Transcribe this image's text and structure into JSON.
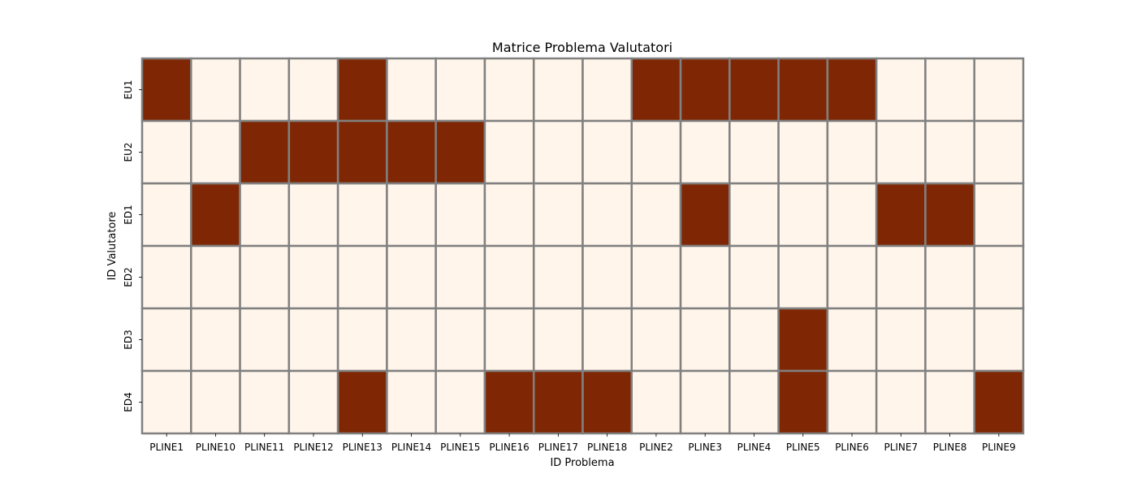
{
  "chart_data": {
    "type": "heatmap",
    "title": "Matrice Problema Valutatori",
    "xlabel": "ID Problema",
    "ylabel": "ID Valutatore",
    "x_categories": [
      "PLINE1",
      "PLINE10",
      "PLINE11",
      "PLINE12",
      "PLINE13",
      "PLINE14",
      "PLINE15",
      "PLINE16",
      "PLINE17",
      "PLINE18",
      "PLINE2",
      "PLINE3",
      "PLINE4",
      "PLINE5",
      "PLINE6",
      "PLINE7",
      "PLINE8",
      "PLINE9"
    ],
    "y_categories": [
      "EU1",
      "EU2",
      "ED1",
      "ED2",
      "ED3",
      "ED4"
    ],
    "values": [
      [
        1,
        0,
        0,
        0,
        1,
        0,
        0,
        0,
        0,
        0,
        1,
        1,
        1,
        1,
        1,
        0,
        0,
        0
      ],
      [
        0,
        0,
        1,
        1,
        1,
        1,
        1,
        0,
        0,
        0,
        0,
        0,
        0,
        0,
        0,
        0,
        0,
        0
      ],
      [
        0,
        1,
        0,
        0,
        0,
        0,
        0,
        0,
        0,
        0,
        0,
        1,
        0,
        0,
        0,
        1,
        1,
        0
      ],
      [
        0,
        0,
        0,
        0,
        0,
        0,
        0,
        0,
        0,
        0,
        0,
        0,
        0,
        0,
        0,
        0,
        0,
        0
      ],
      [
        0,
        0,
        0,
        0,
        0,
        0,
        0,
        0,
        0,
        0,
        0,
        0,
        0,
        1,
        0,
        0,
        0,
        0
      ],
      [
        0,
        0,
        0,
        0,
        1,
        0,
        0,
        1,
        1,
        1,
        0,
        0,
        0,
        1,
        0,
        0,
        0,
        1
      ]
    ],
    "colorbar": false,
    "colors": {
      "high": "#7f2704",
      "low": "#fff5eb",
      "cell_border": "#808080"
    }
  }
}
